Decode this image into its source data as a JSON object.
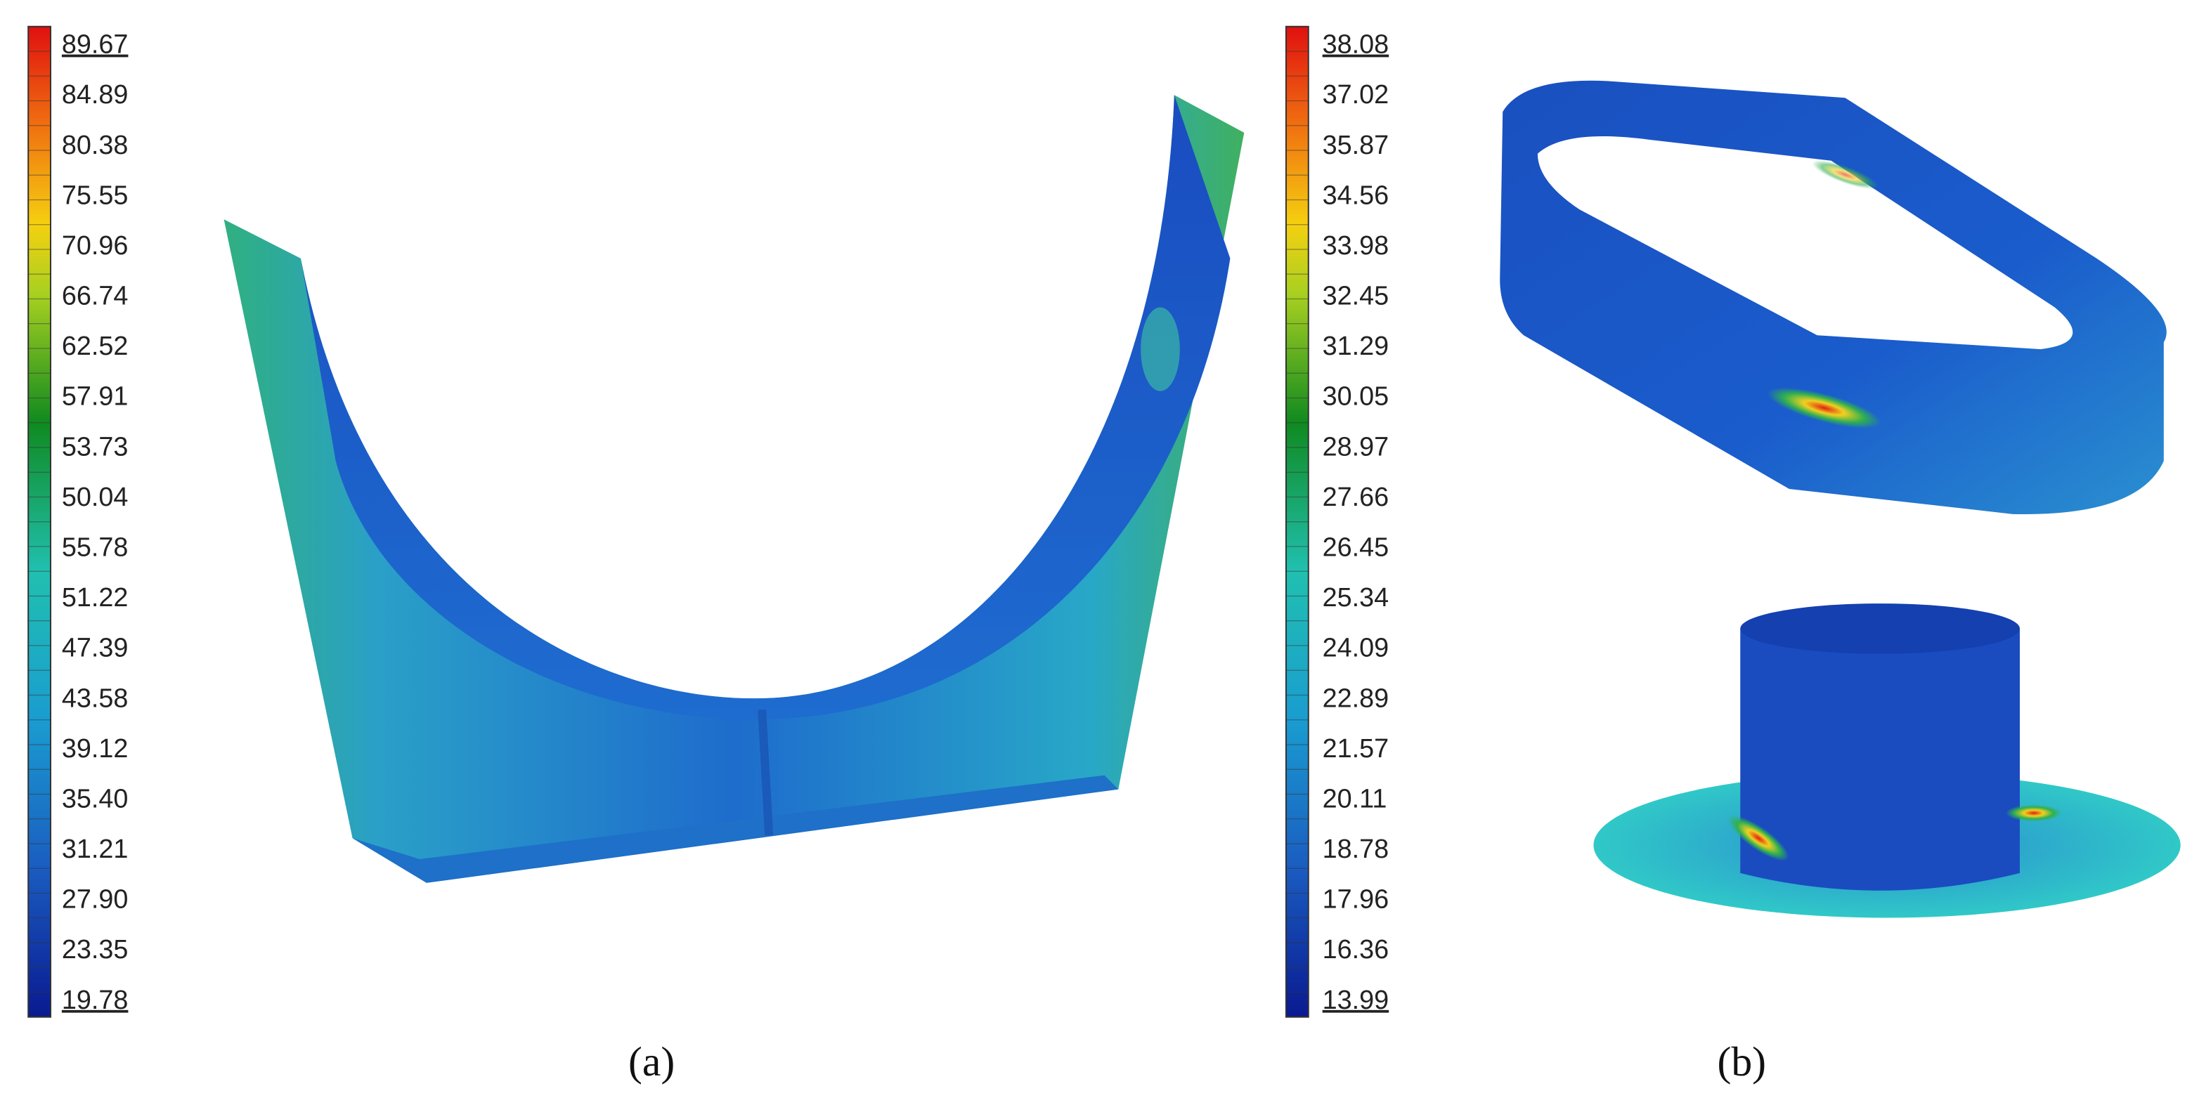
{
  "legend_a": {
    "labels": [
      "89.67",
      "84.89",
      "80.38",
      "75.55",
      "70.96",
      "66.74",
      "62.52",
      "57.91",
      "53.73",
      "50.04",
      "55.78",
      "51.22",
      "47.39",
      "43.58",
      "39.12",
      "35.40",
      "31.21",
      "27.90",
      "23.35",
      "19.78"
    ]
  },
  "legend_b": {
    "labels": [
      "38.08",
      "37.02",
      "35.87",
      "34.56",
      "33.98",
      "32.45",
      "31.29",
      "30.05",
      "28.97",
      "27.66",
      "26.45",
      "25.34",
      "24.09",
      "22.89",
      "21.57",
      "20.11",
      "18.78",
      "17.96",
      "16.36",
      "13.99"
    ]
  },
  "panels": [
    "(a)",
    "(b)"
  ]
}
